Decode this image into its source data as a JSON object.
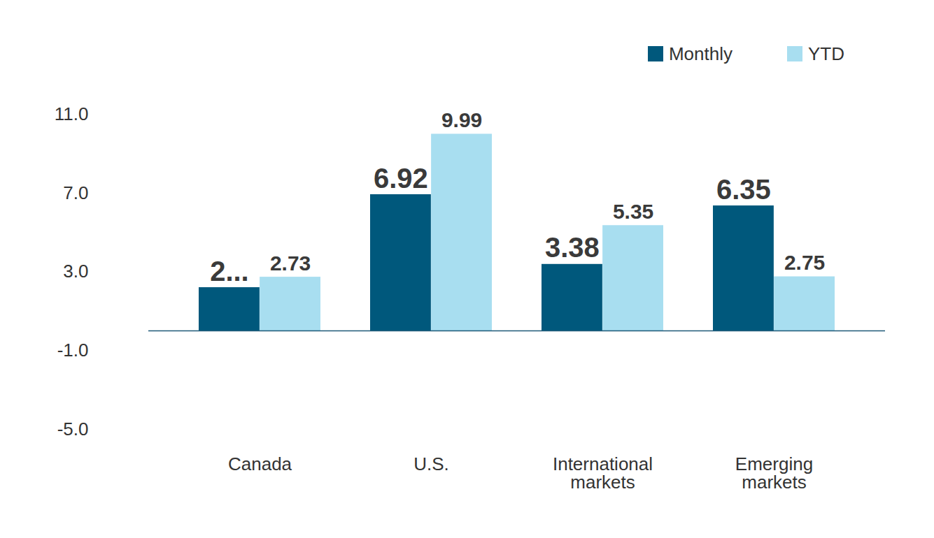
{
  "chart_data": {
    "type": "bar",
    "categories": [
      "Canada",
      "U.S.",
      "International markets",
      "Emerging markets"
    ],
    "series": [
      {
        "name": "Monthly",
        "color": "#00587c",
        "values": [
          2.2,
          6.92,
          3.38,
          6.35
        ],
        "value_labels": [
          "2...",
          "6.92",
          "3.38",
          "6.35"
        ]
      },
      {
        "name": "YTD",
        "color": "#a8def0",
        "values": [
          2.73,
          9.99,
          5.35,
          2.75
        ],
        "value_labels": [
          "2.73",
          "9.99",
          "5.35",
          "2.75"
        ]
      }
    ],
    "ylim": [
      -5,
      11
    ],
    "yticks": [
      {
        "value": -5,
        "label": "-5.0"
      },
      {
        "value": -1,
        "label": "-1.0"
      },
      {
        "value": 3,
        "label": "3.0"
      },
      {
        "value": 7,
        "label": "7.0"
      },
      {
        "value": 11,
        "label": "11.0"
      }
    ],
    "grid": false,
    "legend": "top-right",
    "data_labels": true
  }
}
